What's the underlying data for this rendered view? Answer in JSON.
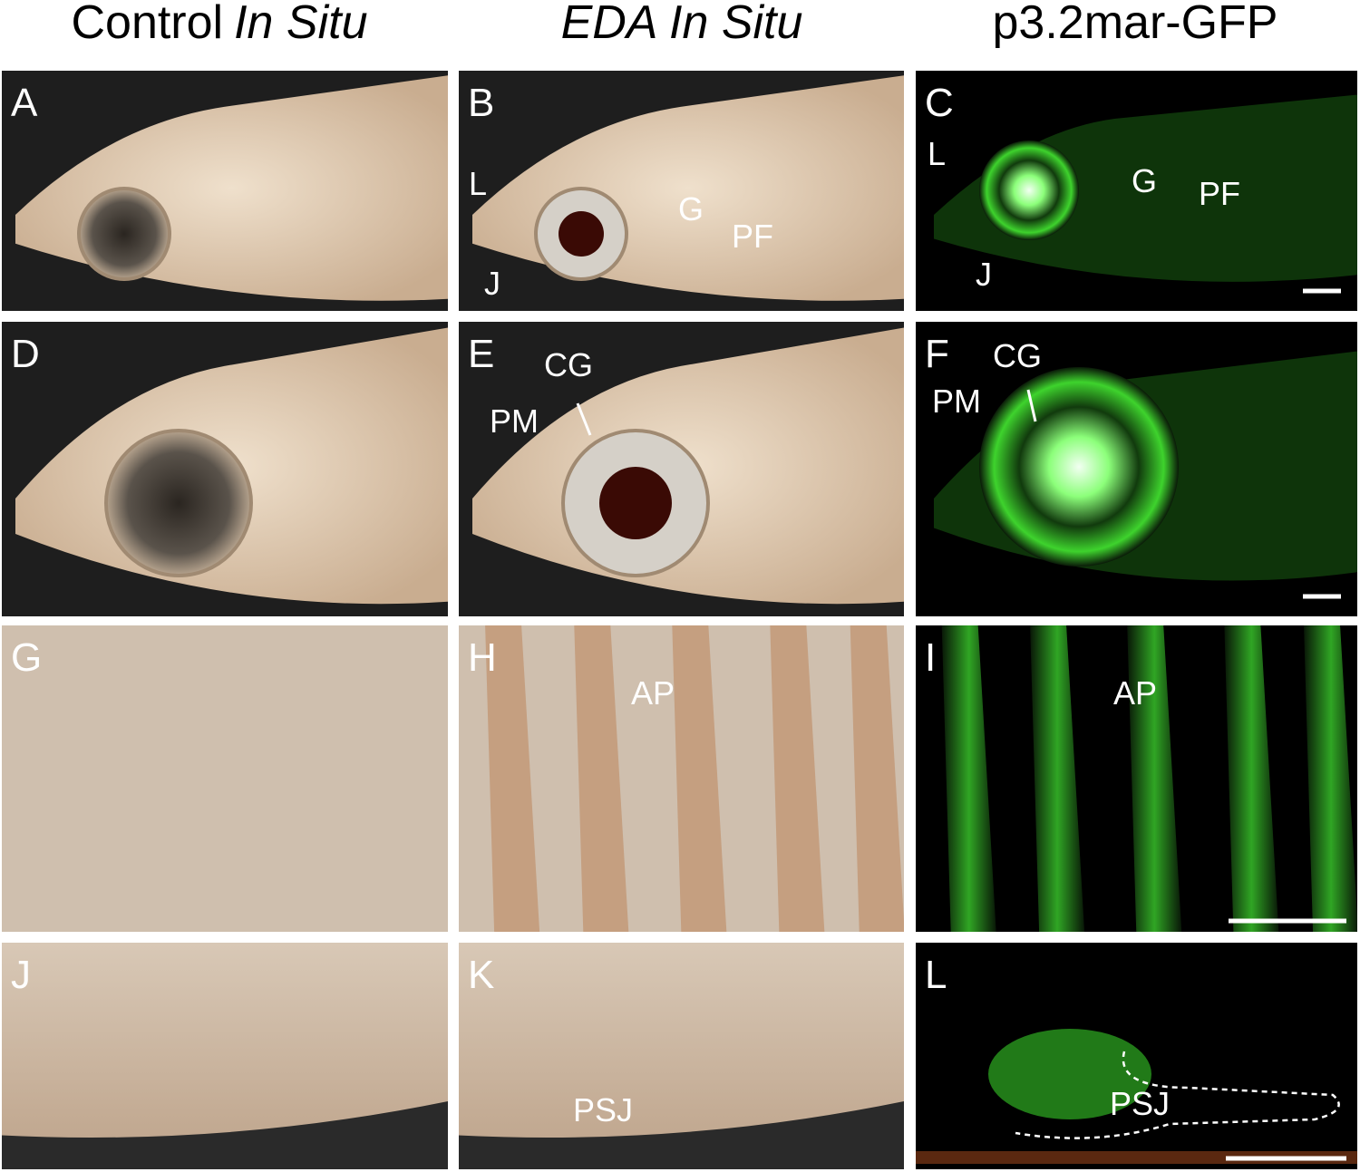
{
  "columns": [
    {
      "title": "Control",
      "title_italic": "In Situ"
    },
    {
      "title_italic": "EDA In Situ"
    },
    {
      "title": "p3.2mar-GFP"
    }
  ],
  "panels": [
    {
      "letter": "A"
    },
    {
      "letter": "B",
      "labels": [
        "L",
        "G",
        "PF",
        "J"
      ]
    },
    {
      "letter": "C",
      "labels": [
        "L",
        "G",
        "PF",
        "J"
      ]
    },
    {
      "letter": "D"
    },
    {
      "letter": "E",
      "labels": [
        "CG",
        "PM"
      ]
    },
    {
      "letter": "F",
      "labels": [
        "CG",
        "PM"
      ]
    },
    {
      "letter": "G"
    },
    {
      "letter": "H",
      "labels": [
        "AP"
      ]
    },
    {
      "letter": "I",
      "labels": [
        "AP"
      ]
    },
    {
      "letter": "J"
    },
    {
      "letter": "K",
      "labels": [
        "PSJ"
      ]
    },
    {
      "letter": "L",
      "labels": [
        "PSJ"
      ]
    }
  ]
}
